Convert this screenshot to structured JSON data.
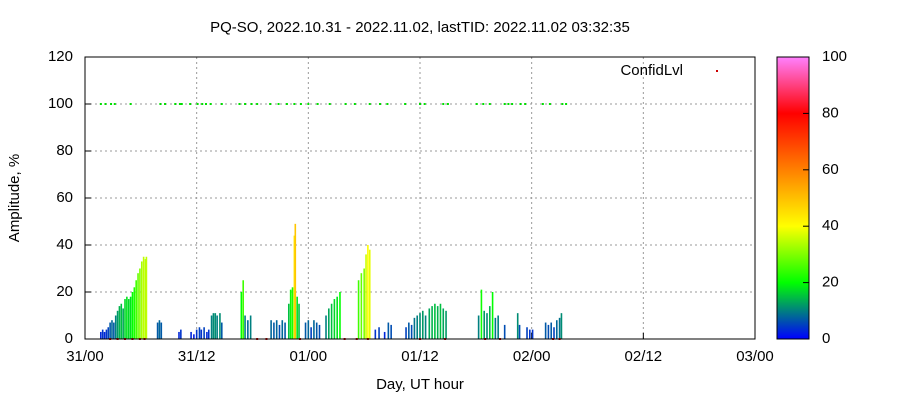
{
  "chart_data": {
    "type": "bar",
    "title": "PQ-SO, 2022.10.31 - 2022.11.02, lastTID: 2022.11.02 03:32:35",
    "xlabel": "Day, UT hour",
    "ylabel": "Amplitude, %",
    "xlim": [
      0,
      72
    ],
    "xticks": [
      {
        "value": 0,
        "label": "31/00"
      },
      {
        "value": 12,
        "label": "31/12"
      },
      {
        "value": 24,
        "label": "01/00"
      },
      {
        "value": 36,
        "label": "01/12"
      },
      {
        "value": 48,
        "label": "02/00"
      },
      {
        "value": 60,
        "label": "02/12"
      },
      {
        "value": 72,
        "label": "03/00"
      }
    ],
    "ylim": [
      0,
      120
    ],
    "yticks": [
      0,
      20,
      40,
      60,
      80,
      100,
      120
    ],
    "grid": true,
    "cblim": [
      0,
      100
    ],
    "cbticks": [
      0,
      20,
      40,
      60,
      80,
      100
    ],
    "palette": [
      "#0000ff",
      "#00ff00",
      "#ffff00",
      "#ff8000",
      "#ff0000",
      "#ff80ff"
    ],
    "legend": "top-right",
    "x": [
      1.7,
      1.9,
      2.1,
      2.3,
      2.5,
      2.7,
      2.9,
      3.1,
      3.3,
      3.5,
      3.7,
      3.9,
      4.1,
      4.3,
      4.5,
      4.7,
      4.9,
      5.1,
      5.3,
      5.5,
      5.7,
      5.9,
      6.1,
      6.3,
      6.5,
      6.6,
      7.8,
      8.0,
      8.2,
      10.1,
      10.3,
      11.4,
      11.7,
      12.0,
      12.3,
      12.5,
      12.8,
      13.1,
      13.3,
      13.6,
      13.8,
      14.0,
      14.2,
      14.5,
      14.7,
      16.8,
      17.0,
      17.2,
      17.5,
      17.8,
      20.0,
      20.3,
      20.6,
      20.9,
      21.2,
      21.5,
      21.9,
      22.1,
      22.3,
      22.5,
      22.6,
      22.8,
      23.0,
      23.7,
      24.0,
      24.3,
      24.6,
      24.9,
      25.2,
      25.9,
      26.2,
      26.5,
      26.8,
      27.1,
      27.4,
      29.4,
      29.7,
      30.0,
      30.2,
      30.4,
      30.6,
      31.2,
      31.6,
      32.2,
      32.6,
      32.9,
      34.5,
      34.8,
      35.1,
      35.4,
      35.7,
      36.0,
      36.3,
      36.6,
      37.0,
      37.3,
      37.6,
      37.9,
      38.2,
      38.5,
      38.8,
      42.3,
      42.6,
      42.9,
      43.2,
      43.5,
      43.8,
      44.1,
      44.4,
      45.1,
      46.5,
      46.7,
      47.5,
      47.8,
      48.1,
      49.5,
      49.8,
      50.1,
      50.4,
      50.7,
      51.0,
      51.2
    ],
    "values": [
      3,
      4,
      3,
      4,
      5,
      7,
      8,
      7,
      10,
      12,
      14,
      15,
      13,
      17,
      18,
      17,
      18,
      20,
      22,
      25,
      28,
      30,
      33,
      35,
      34,
      35,
      7,
      8,
      7,
      3,
      4,
      3,
      2,
      4,
      5,
      4,
      5,
      3,
      4,
      10,
      11,
      11,
      10,
      11,
      7,
      20,
      25,
      10,
      8,
      10,
      8,
      7,
      8,
      6,
      8,
      7,
      15,
      21,
      22,
      44,
      49,
      18,
      15,
      7,
      8,
      5,
      8,
      7,
      6,
      10,
      13,
      15,
      17,
      18,
      20,
      25,
      28,
      30,
      36,
      40,
      38,
      4,
      5,
      3,
      7,
      6,
      5,
      7,
      6,
      9,
      10,
      11,
      12,
      10,
      13,
      14,
      15,
      14,
      15,
      13,
      12,
      10,
      21,
      12,
      11,
      14,
      20,
      9,
      10,
      6,
      11,
      6,
      5,
      4,
      4,
      7,
      6,
      7,
      5,
      8,
      9,
      11
    ],
    "series": [
      {
        "name": "ConfidLvl",
        "color": "#cc0000",
        "x": [
          2.7,
          3.5,
          4.3,
          5.1,
          5.9,
          6.4,
          18.5,
          19.5,
          23.1,
          27.9,
          29.2,
          30.4,
          36.0,
          38.7,
          43.0,
          44.6,
          50.3,
          51.0
        ],
        "values": [
          0,
          0,
          0,
          0,
          0,
          0,
          0,
          0,
          0,
          0,
          0,
          0,
          0,
          0,
          0,
          0,
          0,
          0
        ]
      },
      {
        "name": null,
        "color": "#00e000",
        "x": [
          1.7,
          2.2,
          2.8,
          3.2,
          4.9,
          8.1,
          8.6,
          9.7,
          10.2,
          10.4,
          11.3,
          12.1,
          12.6,
          13.0,
          13.5,
          14.7,
          16.6,
          17.2,
          17.9,
          18.5,
          19.9,
          20.8,
          21.7,
          22.5,
          23.2,
          24.0,
          25.0,
          26.3,
          28.0,
          29.0,
          30.6,
          31.7,
          32.5,
          34.4,
          36.0,
          36.5,
          38.5,
          39.0,
          42.1,
          42.8,
          43.5,
          45.1,
          45.5,
          45.9,
          46.8,
          47.3,
          49.2,
          49.96,
          51.3,
          51.7
        ],
        "values": [
          100,
          100,
          100,
          100,
          100,
          100,
          100,
          100,
          100,
          100,
          100,
          100,
          100,
          100,
          100,
          100,
          100,
          100,
          100,
          100,
          100,
          100,
          100,
          100,
          100,
          100,
          100,
          100,
          100,
          100,
          100,
          100,
          100,
          100,
          100,
          100,
          100,
          100,
          100,
          100,
          100,
          100,
          100,
          100,
          100,
          100,
          100,
          100,
          100,
          100
        ]
      }
    ]
  }
}
